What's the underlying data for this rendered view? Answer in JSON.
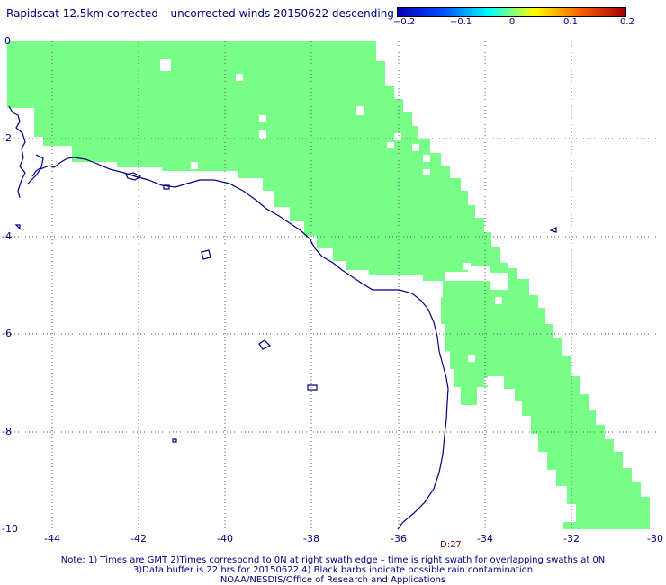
{
  "title": "Rapidscat 12.5km corrected – uncorrected winds 20150622 descending",
  "colorbar": {
    "ticks": [
      "−0.2",
      "−0.1",
      "0",
      "0.1",
      "0.2"
    ],
    "colors": [
      "#0000b4",
      "#0050ff",
      "#00ffff",
      "#ffff00",
      "#ff6000",
      "#a00000"
    ]
  },
  "map": {
    "lon_range": [
      -45,
      -30
    ],
    "lat_range": [
      -10,
      0
    ],
    "x_ticks": [
      "-44",
      "-42",
      "-40",
      "-38",
      "-36",
      "-34",
      "-32",
      "-30"
    ],
    "y_ticks": [
      "0",
      "-2",
      "-4",
      "-6",
      "-8",
      "-10"
    ],
    "swath_color": "#77ff88",
    "coast_color": "#000080",
    "grid": "dotted"
  },
  "time_label": "D:27",
  "notes": [
    "Note: 1) Times are GMT 2)Times correspond to 0N at right swath edge – time is right swath for overlapping swaths at 0N",
    "3)Data buffer is 22 hrs for 20150622 4) Black barbs indicate possible rain contamination",
    "NOAA/NESDIS/Office of Research and Applications"
  ]
}
